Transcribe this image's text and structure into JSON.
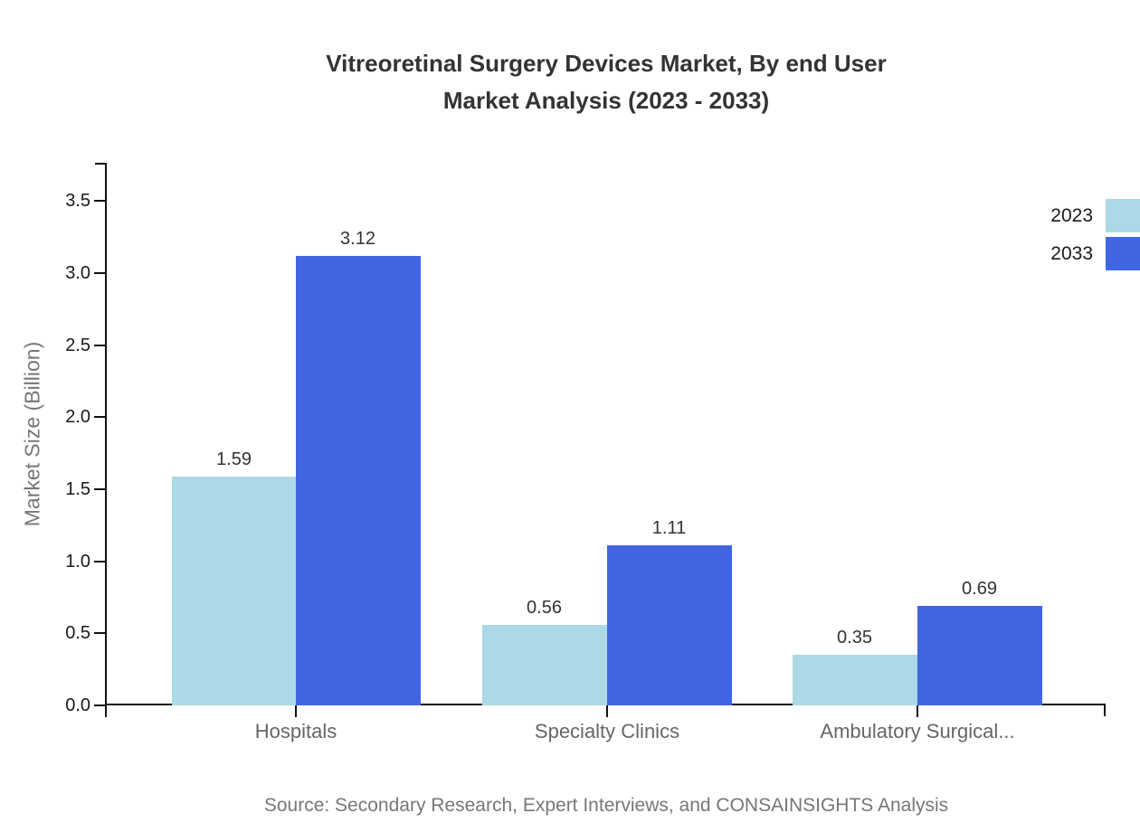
{
  "title": {
    "line1": "Vitreoretinal Surgery Devices Market, By end User",
    "line2": "Market Analysis (2023 - 2033)"
  },
  "source": "Source: Secondary Research, Expert Interviews, and CONSAINSIGHTS Analysis",
  "chart_data": {
    "type": "bar",
    "categories": [
      "Hospitals",
      "Specialty Clinics",
      "Ambulatory Surgical..."
    ],
    "series": [
      {
        "name": "2023",
        "color": "#ADD8E6",
        "values": [
          1.59,
          0.56,
          0.35
        ]
      },
      {
        "name": "2033",
        "color": "#4266E1",
        "values": [
          3.12,
          1.11,
          0.69
        ]
      }
    ],
    "title": "Vitreoretinal Surgery Devices Market, By end User Market Analysis (2023 - 2033)",
    "xlabel": "",
    "ylabel": "Market Size (Billion)",
    "ylim": [
      0,
      3.5
    ],
    "ytick_step": 0.5,
    "ytick_labels": [
      "0.0",
      "0.5",
      "1.0",
      "1.5",
      "2.0",
      "2.5",
      "3.0",
      "3.5"
    ],
    "value_labels": true,
    "grid": false,
    "legend_position": "right"
  }
}
